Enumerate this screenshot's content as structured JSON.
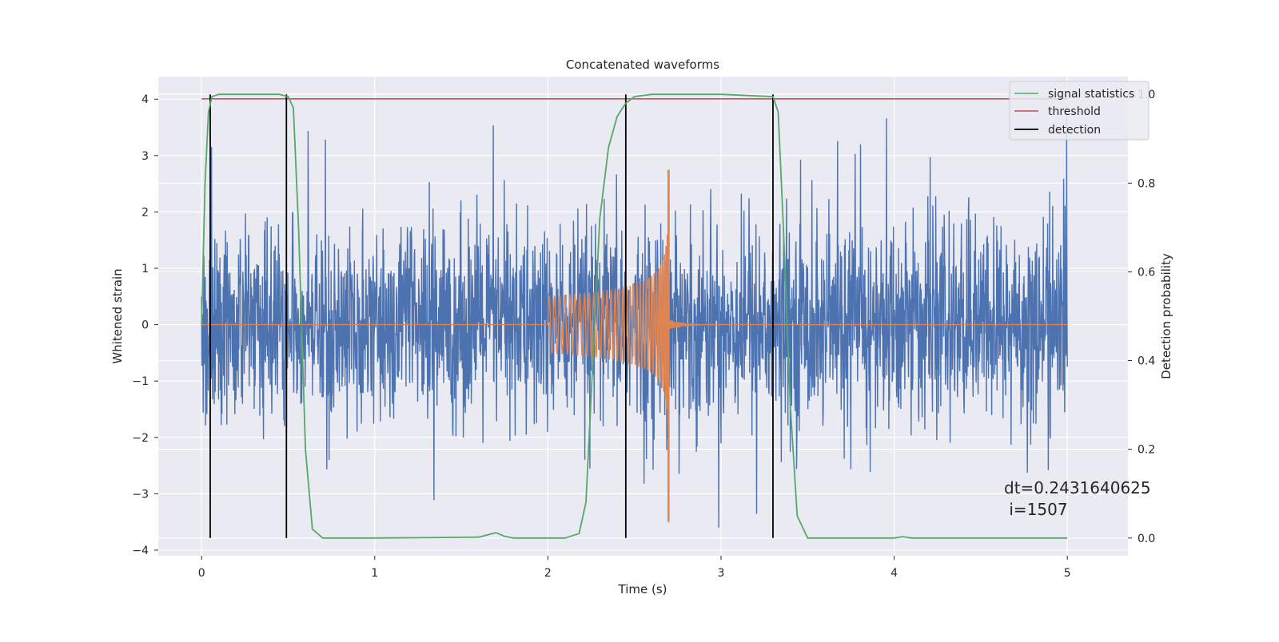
{
  "chart_data": {
    "type": "line",
    "title": "Concatenated waveforms",
    "xlabel": "Time (s)",
    "ylabel": "Whitened strain",
    "ylabel_right": "Detection probability",
    "xlim": [
      -0.25,
      5.35
    ],
    "ylim": [
      -4.1,
      4.4
    ],
    "ylim_right": [
      -0.04,
      1.04
    ],
    "x_ticks": [
      0,
      1,
      2,
      3,
      4,
      5
    ],
    "x_tick_labels": [
      "0",
      "1",
      "2",
      "3",
      "4",
      "5"
    ],
    "y_ticks": [
      -4,
      -3,
      -2,
      -1,
      0,
      1,
      2,
      3,
      4
    ],
    "y_tick_labels": [
      "−4",
      "−3",
      "−2",
      "−1",
      "0",
      "1",
      "2",
      "3",
      "4"
    ],
    "y_right_ticks": [
      0.0,
      0.2,
      0.4,
      0.6,
      0.8,
      1.0
    ],
    "y_right_tick_labels": [
      "0.0",
      "0.2",
      "0.4",
      "0.6",
      "0.8",
      "1.0"
    ],
    "grid": true,
    "legend_position": "top-right",
    "legend": [
      {
        "label": "signal statistics",
        "color": "#55a868"
      },
      {
        "label": "threshold",
        "color": "#c44e52"
      },
      {
        "label": "detection",
        "color": "#000000"
      }
    ],
    "noise_series": {
      "color": "#4c72b0",
      "t_start": 0.0,
      "t_end": 5.0,
      "typical_amplitude": 1.0,
      "max_spike": 3.9,
      "min_spike": -3.6
    },
    "injected_signal": {
      "color": "#dd8452",
      "t_start": 2.0,
      "t_merger": 2.7,
      "t_end": 3.0,
      "initial_amplitude": 0.5,
      "peak_amplitude": 2.75,
      "min_value": -3.5
    },
    "signal_statistics": {
      "x": [
        0.0,
        0.02,
        0.04,
        0.06,
        0.1,
        0.2,
        0.3,
        0.45,
        0.5,
        0.53,
        0.56,
        0.6,
        0.64,
        0.7,
        1.0,
        1.6,
        1.7,
        1.75,
        1.8,
        2.1,
        2.18,
        2.22,
        2.26,
        2.3,
        2.35,
        2.4,
        2.45,
        2.5,
        2.6,
        3.0,
        3.3,
        3.33,
        3.36,
        3.4,
        3.44,
        3.5,
        4.0,
        4.05,
        4.1,
        4.5,
        5.0
      ],
      "y": [
        0.48,
        0.8,
        0.96,
        0.995,
        1.0,
        1.0,
        1.0,
        1.0,
        0.995,
        0.97,
        0.7,
        0.2,
        0.02,
        0.0,
        0.0,
        0.002,
        0.012,
        0.004,
        0.0,
        0.0,
        0.01,
        0.08,
        0.4,
        0.72,
        0.88,
        0.95,
        0.98,
        0.995,
        1.0,
        1.0,
        0.995,
        0.96,
        0.7,
        0.3,
        0.05,
        0.0,
        0.0,
        0.003,
        0.0,
        0.0,
        0.0
      ]
    },
    "threshold": {
      "value": 0.99,
      "x_start": 0.0,
      "x_end": 5.0
    },
    "detections": [
      0.05,
      0.49,
      2.45,
      3.3
    ],
    "annotation": {
      "line1": "dt=0.2431640625",
      "line2": " i=1507",
      "x": 4.5,
      "y": -2.9
    }
  }
}
